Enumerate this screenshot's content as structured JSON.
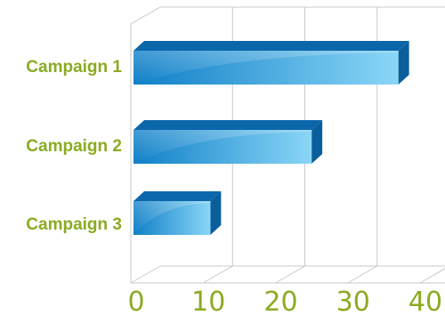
{
  "chart_data": {
    "type": "bar",
    "orientation": "horizontal",
    "style": "3d",
    "categories": [
      "Campaign 1",
      "Campaign 2",
      "Campaign 3"
    ],
    "values": [
      37,
      25,
      11
    ],
    "xlim": [
      0,
      40
    ],
    "ticks": [
      "0",
      "10",
      "20",
      "30",
      "40"
    ],
    "grid": true,
    "title": "",
    "xlabel": "",
    "ylabel": ""
  },
  "colors": {
    "label": "#8aab22",
    "bar_front_dark": "#0f7fc7",
    "bar_front_light": "#8ad6f7",
    "bar_top": "#0c66aa",
    "bar_side": "#0a5e9c",
    "grid": "#c8c8c8"
  }
}
